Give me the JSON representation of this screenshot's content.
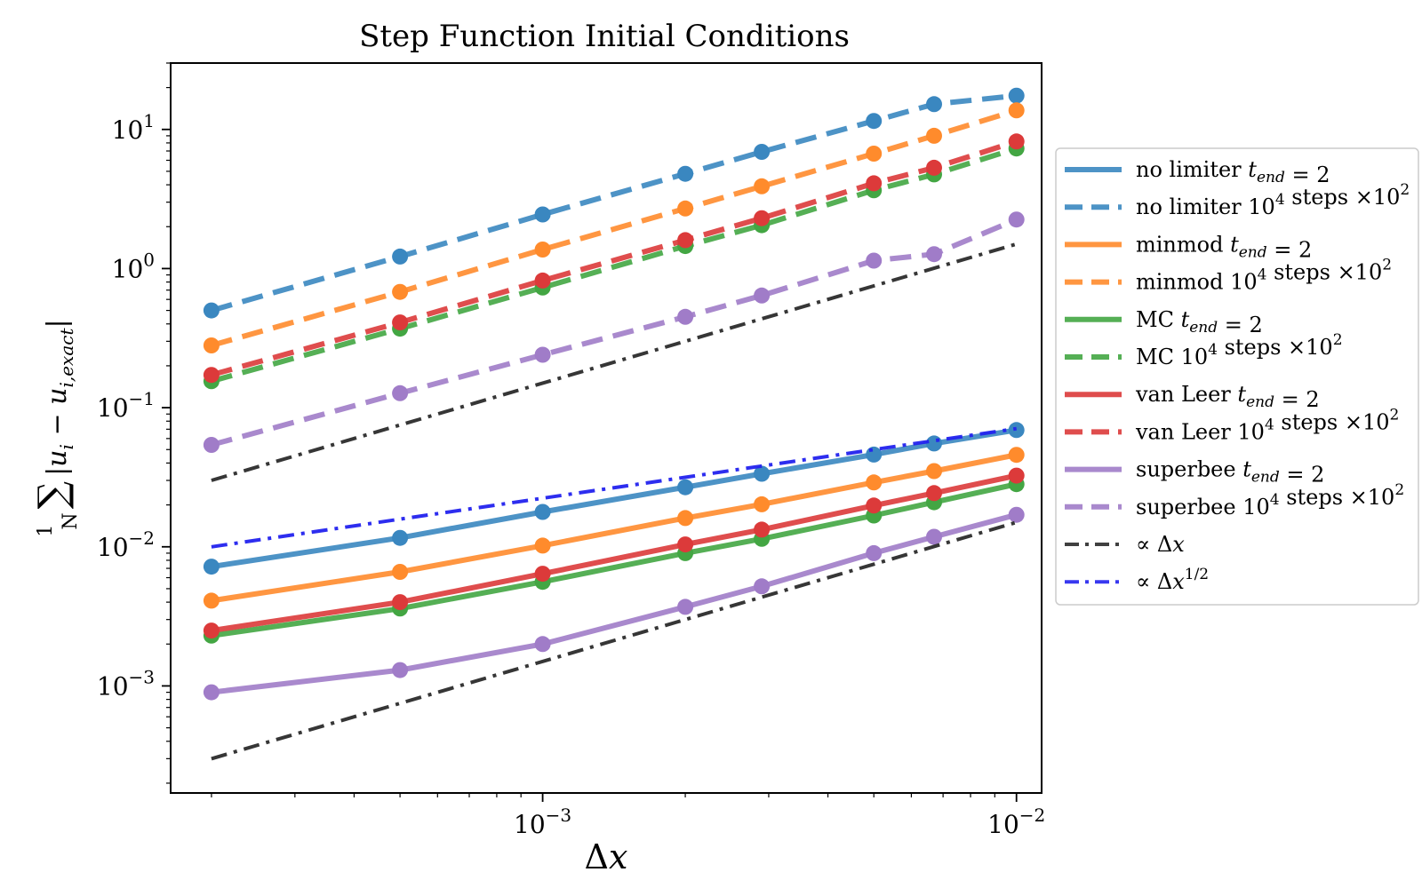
{
  "chart_data": {
    "type": "line",
    "title": "Step Function Initial Conditions",
    "xlabel": "Δx",
    "ylabel": "(1/N) Σ_{i=1}^{N} |u_i − u_{i,exact}|",
    "xscale": "log",
    "yscale": "log",
    "xlim": [
      0.000164,
      0.0113
    ],
    "ylim": [
      0.00017,
      30
    ],
    "grid": false,
    "legend_position": "outside-right",
    "x": [
      0.0002,
      0.0005,
      0.001,
      0.002,
      0.0029,
      0.005,
      0.0067,
      0.01
    ],
    "x_tick_labels": [
      {
        "base": "10",
        "exp": "−3",
        "value": 0.001
      },
      {
        "base": "10",
        "exp": "−2",
        "value": 0.01
      }
    ],
    "y_tick_labels": [
      {
        "base": "10",
        "exp": "1",
        "value": 10
      },
      {
        "base": "10",
        "exp": "0",
        "value": 1
      },
      {
        "base": "10",
        "exp": "−1",
        "value": 0.1
      },
      {
        "base": "10",
        "exp": "−2",
        "value": 0.01
      },
      {
        "base": "10",
        "exp": "−3",
        "value": 0.001
      }
    ],
    "series": [
      {
        "name": "no limiter t_end = 2",
        "label_main": "no limiter ",
        "label_math": "t",
        "label_sub": "end",
        "label_tail": " = 2",
        "color": "#3a87c0",
        "style": "solid",
        "markers": true,
        "values": [
          0.0072,
          0.0116,
          0.0178,
          0.0268,
          0.0335,
          0.046,
          0.0553,
          0.069
        ]
      },
      {
        "name": "no limiter 10^4 steps ×10^2",
        "label_main": "no limiter 10",
        "label_sup": "4",
        "label_tail": " steps ×10",
        "label_sup2": "2",
        "color": "#3a87c0",
        "style": "dashed",
        "markers": true,
        "values": [
          0.5,
          1.22,
          2.45,
          4.8,
          6.9,
          11.5,
          15.2,
          17.5
        ]
      },
      {
        "name": "minmod t_end = 2",
        "label_main": "minmod ",
        "label_math": "t",
        "label_sub": "end",
        "label_tail": " = 2",
        "color": "#ff8b2c",
        "style": "solid",
        "markers": true,
        "values": [
          0.0041,
          0.0066,
          0.0102,
          0.0161,
          0.0202,
          0.029,
          0.035,
          0.0458
        ]
      },
      {
        "name": "minmod 10^4 steps ×10^2",
        "label_main": "minmod 10",
        "label_sup": "4",
        "label_tail": " steps ×10",
        "label_sup2": "2",
        "color": "#ff8b2c",
        "style": "dashed",
        "markers": true,
        "values": [
          0.28,
          0.68,
          1.37,
          2.7,
          3.9,
          6.7,
          9.0,
          13.7
        ]
      },
      {
        "name": "MC t_end = 2",
        "label_main": "MC ",
        "label_math": "t",
        "label_sub": "end",
        "label_tail": " = 2",
        "color": "#43a643",
        "style": "solid",
        "markers": true,
        "values": [
          0.0023,
          0.0036,
          0.0056,
          0.009,
          0.0114,
          0.0168,
          0.0209,
          0.0282
        ]
      },
      {
        "name": "MC 10^4 steps ×10^2",
        "label_main": "MC 10",
        "label_sup": "4",
        "label_tail": " steps ×10",
        "label_sup2": "2",
        "color": "#43a643",
        "style": "dashed",
        "markers": true,
        "values": [
          0.155,
          0.37,
          0.73,
          1.45,
          2.05,
          3.65,
          4.75,
          7.3
        ]
      },
      {
        "name": "van Leer t_end = 2",
        "label_main": "van Leer ",
        "label_math": "t",
        "label_sub": "end",
        "label_tail": " = 2",
        "color": "#dc3a3a",
        "style": "solid",
        "markers": true,
        "values": [
          0.0025,
          0.004,
          0.0064,
          0.0104,
          0.0133,
          0.0198,
          0.0243,
          0.0325
        ]
      },
      {
        "name": "van Leer 10^4 steps ×10^2",
        "label_main": "van Leer 10",
        "label_sup": "4",
        "label_tail": " steps ×10",
        "label_sup2": "2",
        "color": "#dc3a3a",
        "style": "dashed",
        "markers": true,
        "values": [
          0.172,
          0.41,
          0.82,
          1.6,
          2.3,
          4.1,
          5.3,
          8.2
        ]
      },
      {
        "name": "superbee t_end = 2",
        "label_main": "superbee ",
        "label_math": "t",
        "label_sub": "end",
        "label_tail": " = 2",
        "color": "#a07cc8",
        "style": "solid",
        "markers": true,
        "values": [
          0.0009,
          0.0013,
          0.002,
          0.0037,
          0.0052,
          0.009,
          0.0118,
          0.017
        ]
      },
      {
        "name": "superbee 10^4 steps ×10^2",
        "label_main": "superbee 10",
        "label_sup": "4",
        "label_tail": " steps ×10",
        "label_sup2": "2",
        "color": "#a07cc8",
        "style": "dashed",
        "markers": true,
        "values": [
          0.054,
          0.127,
          0.24,
          0.45,
          0.64,
          1.14,
          1.27,
          2.25
        ]
      },
      {
        "name": "∝ Δx",
        "label_main": "∝ Δ",
        "label_math": "x",
        "color": "#2b2b2b",
        "style": "dashdot",
        "markers": false,
        "lines": [
          {
            "x": [
              0.0002,
              0.01
            ],
            "values": [
              0.03,
              1.5
            ]
          },
          {
            "x": [
              0.0002,
              0.01
            ],
            "values": [
              0.0003,
              0.015
            ]
          }
        ]
      },
      {
        "name": "∝ Δx^1/2",
        "label_main": "∝ Δ",
        "label_math": "x",
        "label_sup": "1/2",
        "color": "#2222ee",
        "style": "dashdot",
        "markers": false,
        "lines": [
          {
            "x": [
              0.0002,
              0.01
            ],
            "values": [
              0.01,
              0.0707
            ]
          }
        ]
      }
    ]
  }
}
